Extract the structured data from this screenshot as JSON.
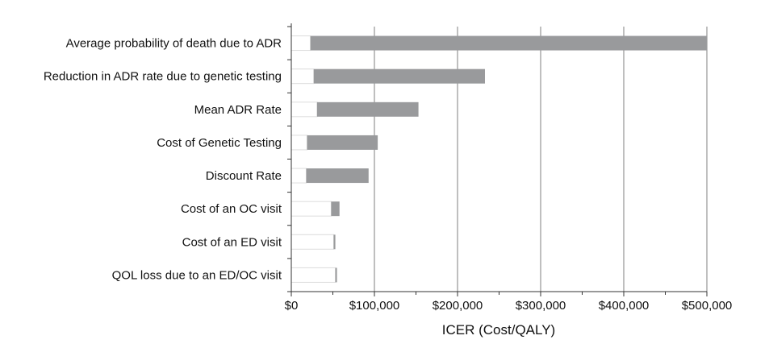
{
  "chart_data": {
    "type": "bar",
    "subtype": "tornado",
    "title": "",
    "xlabel": "ICER  (Cost/QALY)",
    "ylabel": "",
    "xlim": [
      0,
      500000
    ],
    "xticks": [
      0,
      100000,
      200000,
      300000,
      400000,
      500000
    ],
    "xtick_labels": [
      "$0",
      "$100,000",
      "$200,000",
      "$300,000",
      "$400,000",
      "$500,000"
    ],
    "grid": "vertical",
    "colors": {
      "high": "#999a9c",
      "low": "#ffffff",
      "low_border": "#dcdcdc"
    },
    "categories": [
      "Average probability of death due to ADR",
      "Reduction in ADR rate due to genetic testing",
      "Mean ADR Rate",
      "Cost of Genetic Testing",
      "Discount Rate",
      "Cost of an OC visit",
      "Cost of an ED visit",
      "QOL loss due to an ED/OC visit"
    ],
    "series": [
      {
        "name": "",
        "values_low": [
          0,
          0,
          0,
          0,
          0,
          0,
          0,
          0
        ],
        "values_high": [
          23000,
          27000,
          31000,
          19000,
          18000,
          48000,
          51000,
          53000
        ]
      },
      {
        "name": "",
        "values_low": [
          23000,
          27000,
          31000,
          19000,
          18000,
          48000,
          51000,
          53000
        ],
        "values_high": [
          500000,
          233000,
          153000,
          104000,
          93000,
          58000,
          53000,
          53000
        ]
      }
    ]
  }
}
